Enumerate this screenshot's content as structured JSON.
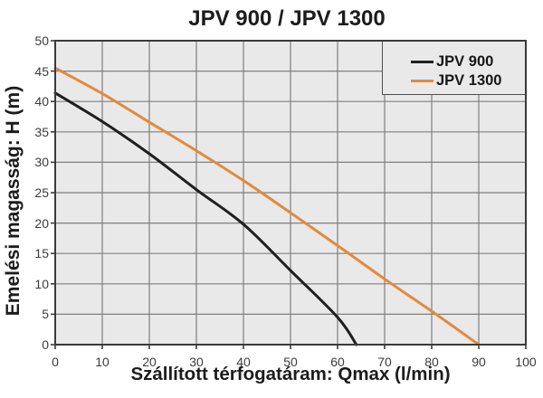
{
  "chart_data": {
    "type": "line",
    "title": "JPV 900 / JPV 1300",
    "xlabel": "Szállított térfogatáram: Qmax (l/min)",
    "ylabel": "Emelési magasság: H (m)",
    "xlim": [
      0,
      100
    ],
    "ylim": [
      0,
      50
    ],
    "x_ticks": [
      0,
      10,
      20,
      30,
      40,
      50,
      60,
      70,
      80,
      90,
      100
    ],
    "y_ticks": [
      0,
      5,
      10,
      15,
      20,
      25,
      30,
      35,
      40,
      45,
      50
    ],
    "grid": true,
    "legend_position": "top-right",
    "series": [
      {
        "name": "JPV 900",
        "color": "#1f1f1f",
        "points": [
          [
            0,
            41.4
          ],
          [
            10,
            36.7
          ],
          [
            20,
            31.4
          ],
          [
            30,
            25.5
          ],
          [
            40,
            19.8
          ],
          [
            50,
            12.2
          ],
          [
            60,
            4.5
          ],
          [
            64,
            0
          ]
        ]
      },
      {
        "name": "JPV 1300",
        "color": "#e28a3e",
        "points": [
          [
            0,
            45.5
          ],
          [
            10,
            41.3
          ],
          [
            20,
            36.6
          ],
          [
            30,
            31.9
          ],
          [
            40,
            27.0
          ],
          [
            50,
            21.7
          ],
          [
            60,
            16.3
          ],
          [
            70,
            10.8
          ],
          [
            80,
            5.5
          ],
          [
            90,
            0
          ]
        ]
      }
    ]
  },
  "colors": {
    "background": "#ffffff",
    "plot_background": "#e9e9e9",
    "grid_line": "#7f7f7f",
    "frame": "#3a3a3a",
    "tick_label": "#3c3c3c",
    "title_text": "#1c1c1c",
    "series_jpv900": "#1f1f1f",
    "series_jpv1300": "#e28a3e"
  }
}
